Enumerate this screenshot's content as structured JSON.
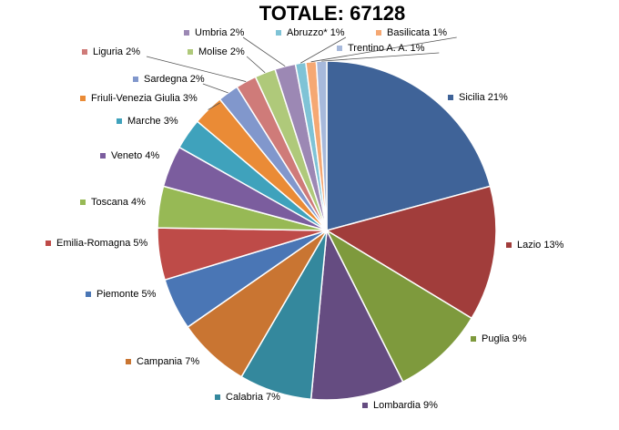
{
  "chart_data": {
    "type": "pie",
    "title": "TOTALE: 67128",
    "slices": [
      {
        "label": "Sicilia 21%",
        "value": 21,
        "color": "#3F6398"
      },
      {
        "label": "Lazio 13%",
        "value": 13,
        "color": "#A13D3B"
      },
      {
        "label": "Puglia 9%",
        "value": 9,
        "color": "#7E9A3D"
      },
      {
        "label": "Lombardia 9%",
        "value": 9,
        "color": "#654C81"
      },
      {
        "label": "Calabria 7%",
        "value": 7,
        "color": "#34889D"
      },
      {
        "label": "Campania 7%",
        "value": 7,
        "color": "#C97532"
      },
      {
        "label": "Piemonte 5%",
        "value": 5,
        "color": "#4A76B5"
      },
      {
        "label": "Emilia-Romagna 5%",
        "value": 5,
        "color": "#BE4B48"
      },
      {
        "label": "Toscana 4%",
        "value": 4,
        "color": "#97B955"
      },
      {
        "label": "Veneto 4%",
        "value": 4,
        "color": "#7B5D9E"
      },
      {
        "label": "Marche 3%",
        "value": 3,
        "color": "#3FA2BC"
      },
      {
        "label": "Friuli-Venezia Giulia 3%",
        "value": 3,
        "color": "#EA8B36"
      },
      {
        "label": "Sardegna 2%",
        "value": 2,
        "color": "#8197CC"
      },
      {
        "label": "Liguria 2%",
        "value": 2,
        "color": "#CF7B79"
      },
      {
        "label": "Molise 2%",
        "value": 2,
        "color": "#AFC97A"
      },
      {
        "label": "Umbria 2%",
        "value": 2,
        "color": "#9C88B4"
      },
      {
        "label": "Abruzzo* 1%",
        "value": 1,
        "color": "#7FC3D6"
      },
      {
        "label": "Basilicata 1%",
        "value": 1,
        "color": "#F5A873"
      },
      {
        "label": "Trentino A. A. 1%",
        "value": 1,
        "color": "#A7B9DB"
      }
    ]
  }
}
